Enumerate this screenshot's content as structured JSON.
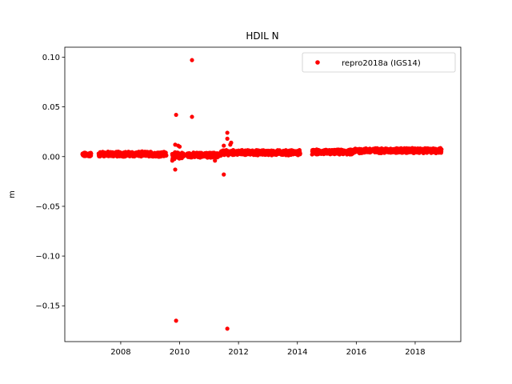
{
  "chart_data": {
    "type": "scatter",
    "title": "HDIL N",
    "xlabel": "",
    "ylabel": "m",
    "xlim": [
      2006.1,
      2019.55
    ],
    "ylim": [
      -0.186,
      0.11
    ],
    "x_ticks": [
      2008,
      2010,
      2012,
      2014,
      2016,
      2018
    ],
    "x_tick_labels": [
      "2008",
      "2010",
      "2012",
      "2014",
      "2016",
      "2018"
    ],
    "y_ticks": [
      0.1,
      0.05,
      0.0,
      -0.05,
      -0.1,
      -0.15
    ],
    "y_tick_labels": [
      "0.10",
      "0.05",
      "0.00",
      "−0.05",
      "−0.10",
      "−0.15"
    ],
    "grid": false,
    "legend_position": "top-right",
    "series": [
      {
        "name": "repro2018a (IGS14)",
        "color": "#ff0000",
        "marker": "circle",
        "dense_segments": [
          {
            "x_start": 2006.7,
            "x_end": 2007.0,
            "y_center": 0.002,
            "spread": 0.003
          },
          {
            "x_start": 2007.25,
            "x_end": 2009.55,
            "y_center": 0.0025,
            "spread": 0.0035
          },
          {
            "x_start": 2009.75,
            "x_end": 2010.15,
            "y_center": 0.001,
            "spread": 0.0045
          },
          {
            "x_start": 2010.25,
            "x_end": 2011.4,
            "y_center": 0.0015,
            "spread": 0.0035
          },
          {
            "x_start": 2011.4,
            "x_end": 2014.1,
            "y_center": 0.004,
            "spread": 0.0035
          },
          {
            "x_start": 2014.5,
            "x_end": 2015.9,
            "y_center": 0.0045,
            "spread": 0.0035
          },
          {
            "x_start": 2015.9,
            "x_end": 2018.9,
            "y_center": 0.006,
            "spread": 0.0035
          }
        ],
        "outliers": [
          {
            "x": 2010.42,
            "y": 0.097
          },
          {
            "x": 2009.88,
            "y": 0.042
          },
          {
            "x": 2010.42,
            "y": 0.04
          },
          {
            "x": 2011.62,
            "y": 0.024
          },
          {
            "x": 2011.62,
            "y": 0.018
          },
          {
            "x": 2011.75,
            "y": 0.014
          },
          {
            "x": 2011.72,
            "y": 0.012
          },
          {
            "x": 2009.85,
            "y": 0.012
          },
          {
            "x": 2009.95,
            "y": 0.011
          },
          {
            "x": 2010.0,
            "y": 0.01
          },
          {
            "x": 2011.5,
            "y": 0.011
          },
          {
            "x": 2009.75,
            "y": -0.004
          },
          {
            "x": 2011.2,
            "y": -0.004
          },
          {
            "x": 2009.85,
            "y": -0.013
          },
          {
            "x": 2011.5,
            "y": -0.018
          },
          {
            "x": 2009.88,
            "y": -0.165
          },
          {
            "x": 2011.62,
            "y": -0.173
          }
        ]
      }
    ]
  }
}
